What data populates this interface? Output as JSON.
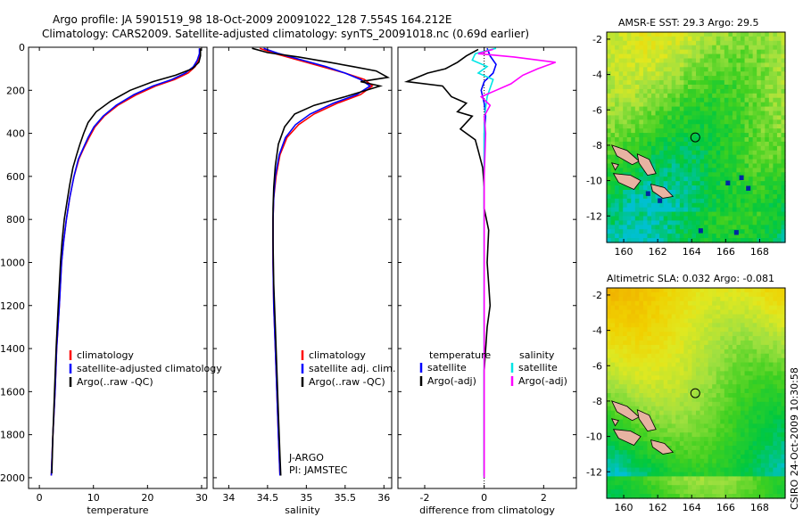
{
  "header": {
    "line1": "Argo profile: JA 5901519_98 18-Oct-2009 20091022_128 7.554S 164.212E",
    "line2": "Climatology: CARS2009. Satellite-adjusted climatology: synTS_20091018.nc (0.69d earlier)"
  },
  "side_label": "CSIRO 24-Oct-2009 10:30:58",
  "colors": {
    "climatology": "#ff0000",
    "satellite": "#0000ff",
    "argo": "#000000",
    "sal_satellite": "#00e5e5",
    "sal_argo": "#ff00ff",
    "land": "#e7b3a2"
  },
  "chart_data": [
    {
      "type": "line",
      "id": "temperature",
      "xlabel": "temperature",
      "xlim": [
        -2,
        31
      ],
      "ylim": [
        0,
        2050
      ],
      "y_reversed": true,
      "xticks": [
        0,
        10,
        20,
        30
      ],
      "yticks": [
        0,
        200,
        400,
        600,
        800,
        1000,
        1200,
        1400,
        1600,
        1800,
        2000
      ],
      "legend": [
        "climatology",
        "satellite-adjusted climatology",
        "Argo(..raw -QC)"
      ],
      "series": [
        {
          "name": "climatology",
          "points": [
            [
              29.7,
              5
            ],
            [
              29.7,
              30
            ],
            [
              29.4,
              60
            ],
            [
              28.8,
              90
            ],
            [
              27.5,
              120
            ],
            [
              25.0,
              150
            ],
            [
              21.5,
              180
            ],
            [
              18.0,
              220
            ],
            [
              14.5,
              270
            ],
            [
              12.0,
              320
            ],
            [
              10.3,
              370
            ],
            [
              9.2,
              420
            ],
            [
              8.2,
              470
            ],
            [
              7.3,
              520
            ],
            [
              6.4,
              600
            ],
            [
              5.6,
              700
            ],
            [
              5.0,
              800
            ],
            [
              4.5,
              900
            ],
            [
              4.1,
              1000
            ],
            [
              3.7,
              1200
            ],
            [
              3.2,
              1400
            ],
            [
              2.9,
              1600
            ],
            [
              2.5,
              1800
            ],
            [
              2.2,
              1990
            ]
          ]
        },
        {
          "name": "satellite-adjusted climatology",
          "points": [
            [
              29.6,
              5
            ],
            [
              29.6,
              30
            ],
            [
              29.2,
              60
            ],
            [
              28.5,
              90
            ],
            [
              27.0,
              120
            ],
            [
              24.5,
              150
            ],
            [
              21.0,
              180
            ],
            [
              17.5,
              220
            ],
            [
              14.2,
              270
            ],
            [
              11.8,
              320
            ],
            [
              10.1,
              370
            ],
            [
              9.0,
              420
            ],
            [
              8.1,
              470
            ],
            [
              7.2,
              520
            ],
            [
              6.4,
              600
            ],
            [
              5.6,
              700
            ],
            [
              5.0,
              800
            ],
            [
              4.5,
              900
            ],
            [
              4.1,
              1000
            ],
            [
              3.7,
              1200
            ],
            [
              3.2,
              1400
            ],
            [
              2.9,
              1600
            ],
            [
              2.5,
              1800
            ],
            [
              2.2,
              1990
            ]
          ]
        },
        {
          "name": "Argo(..raw -QC)",
          "points": [
            [
              29.8,
              5
            ],
            [
              29.8,
              40
            ],
            [
              29.5,
              70
            ],
            [
              28.3,
              100
            ],
            [
              25.2,
              130
            ],
            [
              21.0,
              160
            ],
            [
              16.8,
              200
            ],
            [
              13.2,
              250
            ],
            [
              10.5,
              300
            ],
            [
              9.0,
              350
            ],
            [
              8.2,
              400
            ],
            [
              7.5,
              450
            ],
            [
              6.9,
              500
            ],
            [
              6.2,
              560
            ],
            [
              5.6,
              640
            ],
            [
              5.1,
              720
            ],
            [
              4.6,
              800
            ],
            [
              4.2,
              900
            ],
            [
              3.9,
              1000
            ],
            [
              3.5,
              1200
            ],
            [
              3.1,
              1400
            ],
            [
              2.8,
              1600
            ],
            [
              2.5,
              1800
            ],
            [
              2.3,
              1980
            ]
          ]
        }
      ]
    },
    {
      "type": "line",
      "id": "salinity",
      "xlabel": "salinity",
      "xlim": [
        33.8,
        36.1
      ],
      "ylim": [
        0,
        2050
      ],
      "y_reversed": true,
      "xticks": [
        34,
        34.5,
        35,
        35.5,
        36
      ],
      "legend": [
        "climatology",
        "satellite adj. clim.",
        "Argo(..raw -QC)"
      ],
      "annotation": [
        "J-ARGO",
        "PI: JAMSTEC"
      ],
      "series": [
        {
          "name": "climatology",
          "points": [
            [
              34.4,
              5
            ],
            [
              34.6,
              30
            ],
            [
              34.9,
              60
            ],
            [
              35.2,
              90
            ],
            [
              35.5,
              120
            ],
            [
              35.75,
              150
            ],
            [
              35.85,
              180
            ],
            [
              35.7,
              220
            ],
            [
              35.4,
              260
            ],
            [
              35.1,
              310
            ],
            [
              34.9,
              360
            ],
            [
              34.75,
              420
            ],
            [
              34.66,
              500
            ],
            [
              34.61,
              600
            ],
            [
              34.58,
              700
            ],
            [
              34.57,
              800
            ],
            [
              34.57,
              1000
            ],
            [
              34.58,
              1200
            ],
            [
              34.6,
              1400
            ],
            [
              34.62,
              1600
            ],
            [
              34.64,
              1800
            ],
            [
              34.66,
              1990
            ]
          ]
        },
        {
          "name": "satellite adj. clim.",
          "points": [
            [
              34.45,
              5
            ],
            [
              34.65,
              30
            ],
            [
              34.95,
              60
            ],
            [
              35.25,
              90
            ],
            [
              35.5,
              120
            ],
            [
              35.7,
              150
            ],
            [
              35.82,
              180
            ],
            [
              35.65,
              220
            ],
            [
              35.35,
              260
            ],
            [
              35.05,
              310
            ],
            [
              34.86,
              360
            ],
            [
              34.73,
              420
            ],
            [
              34.65,
              500
            ],
            [
              34.6,
              600
            ],
            [
              34.58,
              700
            ],
            [
              34.57,
              800
            ],
            [
              34.57,
              1000
            ],
            [
              34.58,
              1200
            ],
            [
              34.6,
              1400
            ],
            [
              34.62,
              1600
            ],
            [
              34.64,
              1800
            ],
            [
              34.66,
              1990
            ]
          ]
        },
        {
          "name": "Argo(..raw -QC)",
          "points": [
            [
              34.3,
              5
            ],
            [
              34.5,
              25
            ],
            [
              34.9,
              45
            ],
            [
              35.3,
              70
            ],
            [
              35.6,
              90
            ],
            [
              35.9,
              110
            ],
            [
              36.05,
              140
            ],
            [
              35.7,
              160
            ],
            [
              35.95,
              180
            ],
            [
              35.5,
              230
            ],
            [
              35.1,
              270
            ],
            [
              34.85,
              310
            ],
            [
              34.72,
              370
            ],
            [
              34.64,
              450
            ],
            [
              34.6,
              550
            ],
            [
              34.58,
              650
            ],
            [
              34.57,
              750
            ],
            [
              34.57,
              900
            ],
            [
              34.58,
              1100
            ],
            [
              34.6,
              1300
            ],
            [
              34.62,
              1500
            ],
            [
              34.64,
              1700
            ],
            [
              34.66,
              1900
            ],
            [
              34.67,
              1990
            ]
          ]
        }
      ]
    },
    {
      "type": "line",
      "id": "difference",
      "xlabel": "difference from climatology",
      "xlim": [
        -2.9,
        3.1
      ],
      "ylim": [
        0,
        2050
      ],
      "y_reversed": true,
      "xticks": [
        -2,
        0,
        2
      ],
      "legend_columns": [
        {
          "heading": "temperature",
          "items": [
            "satellite",
            "Argo(-adj)"
          ]
        },
        {
          "heading": "salinity",
          "items": [
            "satellite",
            "Argo(-adj)"
          ]
        }
      ],
      "series": [
        {
          "name": "temperature satellite",
          "points": [
            [
              0.1,
              5
            ],
            [
              0.2,
              40
            ],
            [
              0.4,
              80
            ],
            [
              0.3,
              120
            ],
            [
              0.0,
              160
            ],
            [
              -0.1,
              200
            ],
            [
              0.0,
              260
            ],
            [
              0.05,
              320
            ],
            [
              0.0,
              400
            ],
            [
              0.0,
              600
            ],
            [
              0.0,
              2000
            ]
          ]
        },
        {
          "name": "temperature Argo(-adj)",
          "points": [
            [
              -0.2,
              10
            ],
            [
              -0.6,
              40
            ],
            [
              -0.9,
              70
            ],
            [
              -1.3,
              100
            ],
            [
              -1.9,
              120
            ],
            [
              -2.6,
              160
            ],
            [
              -1.4,
              180
            ],
            [
              -1.1,
              230
            ],
            [
              -0.6,
              260
            ],
            [
              -0.9,
              300
            ],
            [
              -0.4,
              320
            ],
            [
              -0.8,
              380
            ],
            [
              -0.3,
              430
            ],
            [
              -0.2,
              480
            ],
            [
              -0.05,
              560
            ],
            [
              0.0,
              650
            ],
            [
              0.0,
              750
            ],
            [
              0.15,
              850
            ],
            [
              0.1,
              1000
            ],
            [
              0.15,
              1100
            ],
            [
              0.2,
              1200
            ],
            [
              0.1,
              1300
            ],
            [
              0.0,
              1500
            ],
            [
              0.0,
              1990
            ]
          ]
        },
        {
          "name": "salinity satellite",
          "points": [
            [
              0.4,
              5
            ],
            [
              -0.3,
              30
            ],
            [
              -0.4,
              60
            ],
            [
              0.1,
              90
            ],
            [
              -0.2,
              120
            ],
            [
              0.3,
              150
            ],
            [
              0.2,
              190
            ],
            [
              0.1,
              230
            ],
            [
              0.05,
              280
            ],
            [
              0.0,
              350
            ],
            [
              0.0,
              600
            ],
            [
              0.0,
              2000
            ]
          ]
        },
        {
          "name": "salinity Argo(-adj)",
          "points": [
            [
              0.3,
              10
            ],
            [
              -0.2,
              30
            ],
            [
              1.0,
              45
            ],
            [
              2.4,
              70
            ],
            [
              1.8,
              100
            ],
            [
              1.3,
              130
            ],
            [
              0.9,
              170
            ],
            [
              0.4,
              200
            ],
            [
              -0.1,
              230
            ],
            [
              0.2,
              270
            ],
            [
              0.0,
              320
            ],
            [
              0.05,
              400
            ],
            [
              0.0,
              600
            ],
            [
              0.0,
              2000
            ]
          ]
        }
      ]
    },
    {
      "type": "heatmap",
      "id": "sst",
      "title": "AMSR-E SST: 29.3 Argo: 29.5",
      "xlim": [
        159,
        169.5
      ],
      "ylim": [
        -13.5,
        -1.6
      ],
      "xticks": [
        160,
        162,
        164,
        166,
        168
      ],
      "yticks": [
        -2,
        -4,
        -6,
        -8,
        -10,
        -12
      ],
      "marker": {
        "lon": 164.212,
        "lat": -7.554
      }
    },
    {
      "type": "heatmap",
      "id": "sla",
      "title": "Altimetric SLA: 0.032 Argo: -0.081",
      "xlim": [
        159,
        169.5
      ],
      "ylim": [
        -13.5,
        -1.6
      ],
      "xticks": [
        160,
        162,
        164,
        166,
        168
      ],
      "yticks": [
        -2,
        -4,
        -6,
        -8,
        -10,
        -12
      ],
      "marker": {
        "lon": 164.212,
        "lat": -7.554
      }
    }
  ]
}
